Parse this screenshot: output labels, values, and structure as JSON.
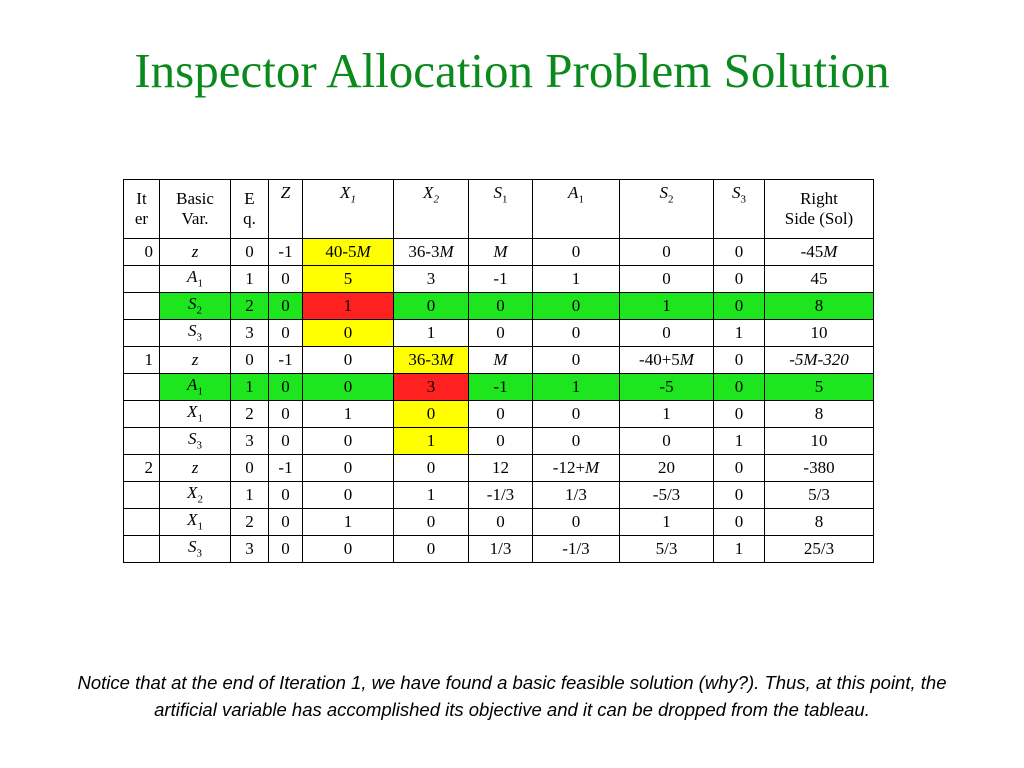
{
  "title": "Inspector Allocation Problem Solution",
  "colors": {
    "title": "#0a8a1c",
    "yellow_highlight": "#ffff00",
    "green_highlight": "#1ee61e",
    "red_highlight": "#ff2020"
  },
  "table": {
    "headers": {
      "iter": [
        "It",
        "er"
      ],
      "basic_var": [
        "Basic",
        "Var."
      ],
      "eq": [
        "E",
        "q."
      ],
      "z": "Z",
      "x1": "X",
      "x1_sub": "1",
      "x2": "X",
      "x2_sub": "2",
      "s1": "S",
      "s1_sub": "1",
      "a1": "A",
      "a1_sub": "1",
      "s2": "S",
      "s2_sub": "2",
      "s3": "S",
      "s3_sub": "3",
      "rhs": [
        "Right",
        "Side (Sol)"
      ]
    },
    "rows": [
      {
        "iter": "0",
        "bv": "z",
        "bv_sub": "",
        "eq": "0",
        "z": "-1",
        "x1": "40-5M",
        "x2": "36-3M",
        "s1": "M",
        "a1": "0",
        "s2": "0",
        "s3": "0",
        "rhs": "-45M"
      },
      {
        "iter": "",
        "bv": "A",
        "bv_sub": "1",
        "eq": "1",
        "z": "0",
        "x1": "5",
        "x2": "3",
        "s1": "-1",
        "a1": "1",
        "s2": "0",
        "s3": "0",
        "rhs": "45"
      },
      {
        "iter": "",
        "bv": "S",
        "bv_sub": "2",
        "eq": "2",
        "z": "0",
        "x1": "1",
        "x2": "0",
        "s1": "0",
        "a1": "0",
        "s2": "1",
        "s3": "0",
        "rhs": "8"
      },
      {
        "iter": "",
        "bv": "S",
        "bv_sub": "3",
        "eq": "3",
        "z": "0",
        "x1": "0",
        "x2": "1",
        "s1": "0",
        "a1": "0",
        "s2": "0",
        "s3": "1",
        "rhs": "10"
      },
      {
        "iter": "1",
        "bv": "z",
        "bv_sub": "",
        "eq": "0",
        "z": "-1",
        "x1": "0",
        "x2": "36-3M",
        "s1": "M",
        "a1": "0",
        "s2": "-40+5M",
        "s3": "0",
        "rhs": "-5M-320"
      },
      {
        "iter": "",
        "bv": "A",
        "bv_sub": "1",
        "eq": "1",
        "z": "0",
        "x1": "0",
        "x2": "3",
        "s1": "-1",
        "a1": "1",
        "s2": "-5",
        "s3": "0",
        "rhs": "5"
      },
      {
        "iter": "",
        "bv": "X",
        "bv_sub": "1",
        "eq": "2",
        "z": "0",
        "x1": "1",
        "x2": "0",
        "s1": "0",
        "a1": "0",
        "s2": "1",
        "s3": "0",
        "rhs": "8"
      },
      {
        "iter": "",
        "bv": "S",
        "bv_sub": "3",
        "eq": "3",
        "z": "0",
        "x1": "0",
        "x2": "1",
        "s1": "0",
        "a1": "0",
        "s2": "0",
        "s3": "1",
        "rhs": "10"
      },
      {
        "iter": "2",
        "bv": "z",
        "bv_sub": "",
        "eq": "0",
        "z": "-1",
        "x1": "0",
        "x2": "0",
        "s1": "12",
        "a1": "-12+M",
        "s2": "20",
        "s3": "0",
        "rhs": "-380"
      },
      {
        "iter": "",
        "bv": "X",
        "bv_sub": "2",
        "eq": "1",
        "z": "0",
        "x1": "0",
        "x2": "1",
        "s1": "-1/3",
        "a1": "1/3",
        "s2": "-5/3",
        "s3": "0",
        "rhs": "5/3"
      },
      {
        "iter": "",
        "bv": "X",
        "bv_sub": "1",
        "eq": "2",
        "z": "0",
        "x1": "1",
        "x2": "0",
        "s1": "0",
        "a1": "0",
        "s2": "1",
        "s3": "0",
        "rhs": "8"
      },
      {
        "iter": "",
        "bv": "S",
        "bv_sub": "3",
        "eq": "3",
        "z": "0",
        "x1": "0",
        "x2": "0",
        "s1": "1/3",
        "a1": "-1/3",
        "s2": "5/3",
        "s3": "1",
        "rhs": "25/3"
      }
    ]
  },
  "note": "Notice that at the end of Iteration 1, we have found a basic feasible solution (why?).  Thus, at this point, the artificial variable has accomplished its objective and it can be dropped from the tableau."
}
